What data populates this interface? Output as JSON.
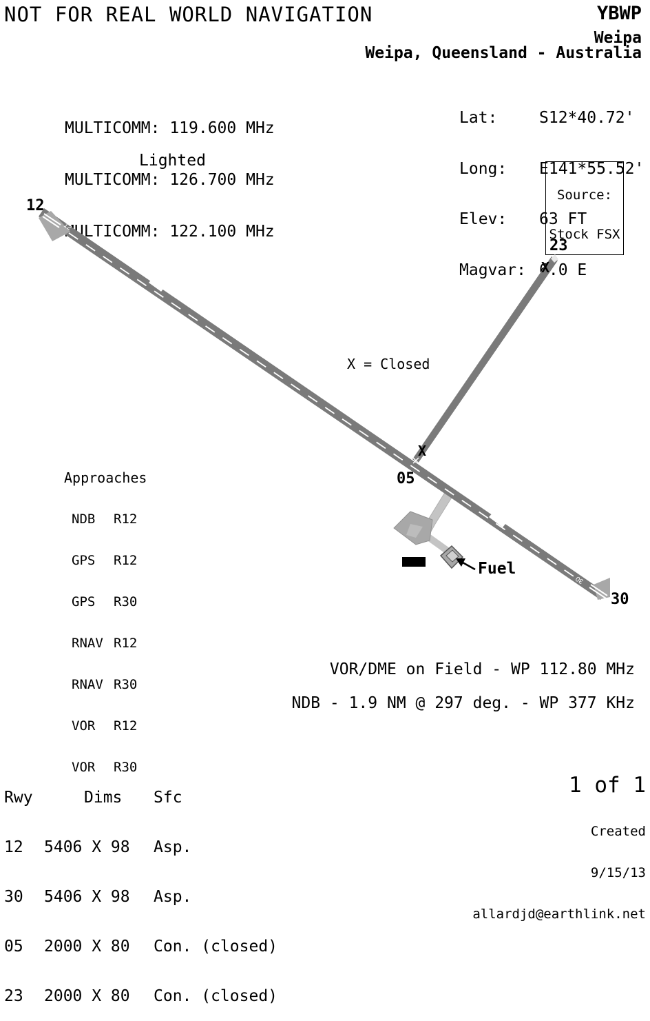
{
  "header": {
    "warning": "NOT FOR REAL WORLD NAVIGATION",
    "icao": "YBWP",
    "airport_name": "Weipa",
    "location": "Weipa, Queensland - Australia"
  },
  "frequencies": [
    "MULTICOMM: 119.600 MHz",
    "MULTICOMM: 126.700 MHz",
    "MULTICOMM: 122.100 MHz"
  ],
  "lighting": "Lighted",
  "coordinates": {
    "lat_label": "Lat:",
    "lat": "S12*40.72'",
    "long_label": "Long:",
    "long": "E141*55.52'",
    "elev_label": "Elev:",
    "elev": "63 FT",
    "magvar_label": "Magvar:",
    "magvar": "6.0 E"
  },
  "source": {
    "line1": "Source:",
    "line2": "Stock FSX"
  },
  "legend_closed": "X = Closed",
  "approaches": {
    "title": "Approaches",
    "items": [
      {
        "type": "NDB",
        "rwy": "R12"
      },
      {
        "type": "GPS",
        "rwy": "R12"
      },
      {
        "type": "GPS",
        "rwy": "R30"
      },
      {
        "type": "RNAV",
        "rwy": "R12"
      },
      {
        "type": "RNAV",
        "rwy": "R30"
      },
      {
        "type": "VOR",
        "rwy": "R12"
      },
      {
        "type": "VOR",
        "rwy": "R30"
      }
    ]
  },
  "runway_labels": {
    "r12": "12",
    "r30": "30",
    "r05": "05",
    "r23": "23"
  },
  "closed_marks": {
    "mark_a": "X",
    "mark_b": "X"
  },
  "runway_end_numbers": {
    "end12": "12",
    "end30": "30"
  },
  "fuel_label": "Fuel",
  "navaids": {
    "vor": "VOR/DME on Field - WP 112.80 MHz",
    "ndb": "NDB - 1.9 NM @ 297 deg. - WP 377 KHz"
  },
  "runway_table": {
    "headers": [
      "Rwy",
      "Dims",
      "Sfc"
    ],
    "rows": [
      {
        "rwy": "12",
        "dims": "5406 X 98",
        "sfc": "Asp."
      },
      {
        "rwy": "30",
        "dims": "5406 X 98",
        "sfc": "Asp."
      },
      {
        "rwy": "05",
        "dims": "2000 X 80",
        "sfc": "Con. (closed)"
      },
      {
        "rwy": "23",
        "dims": "2000 X 80",
        "sfc": "Con. (closed)"
      }
    ]
  },
  "footer": {
    "page": "1 of 1",
    "created_label": "Created",
    "date": "9/15/13",
    "email": "allardjd@earthlink.net"
  },
  "colors": {
    "runway": "#7a7a7a",
    "apron": "#a8a8a8",
    "taxiway": "#c4c4c4",
    "centerline": "#ffffff"
  }
}
